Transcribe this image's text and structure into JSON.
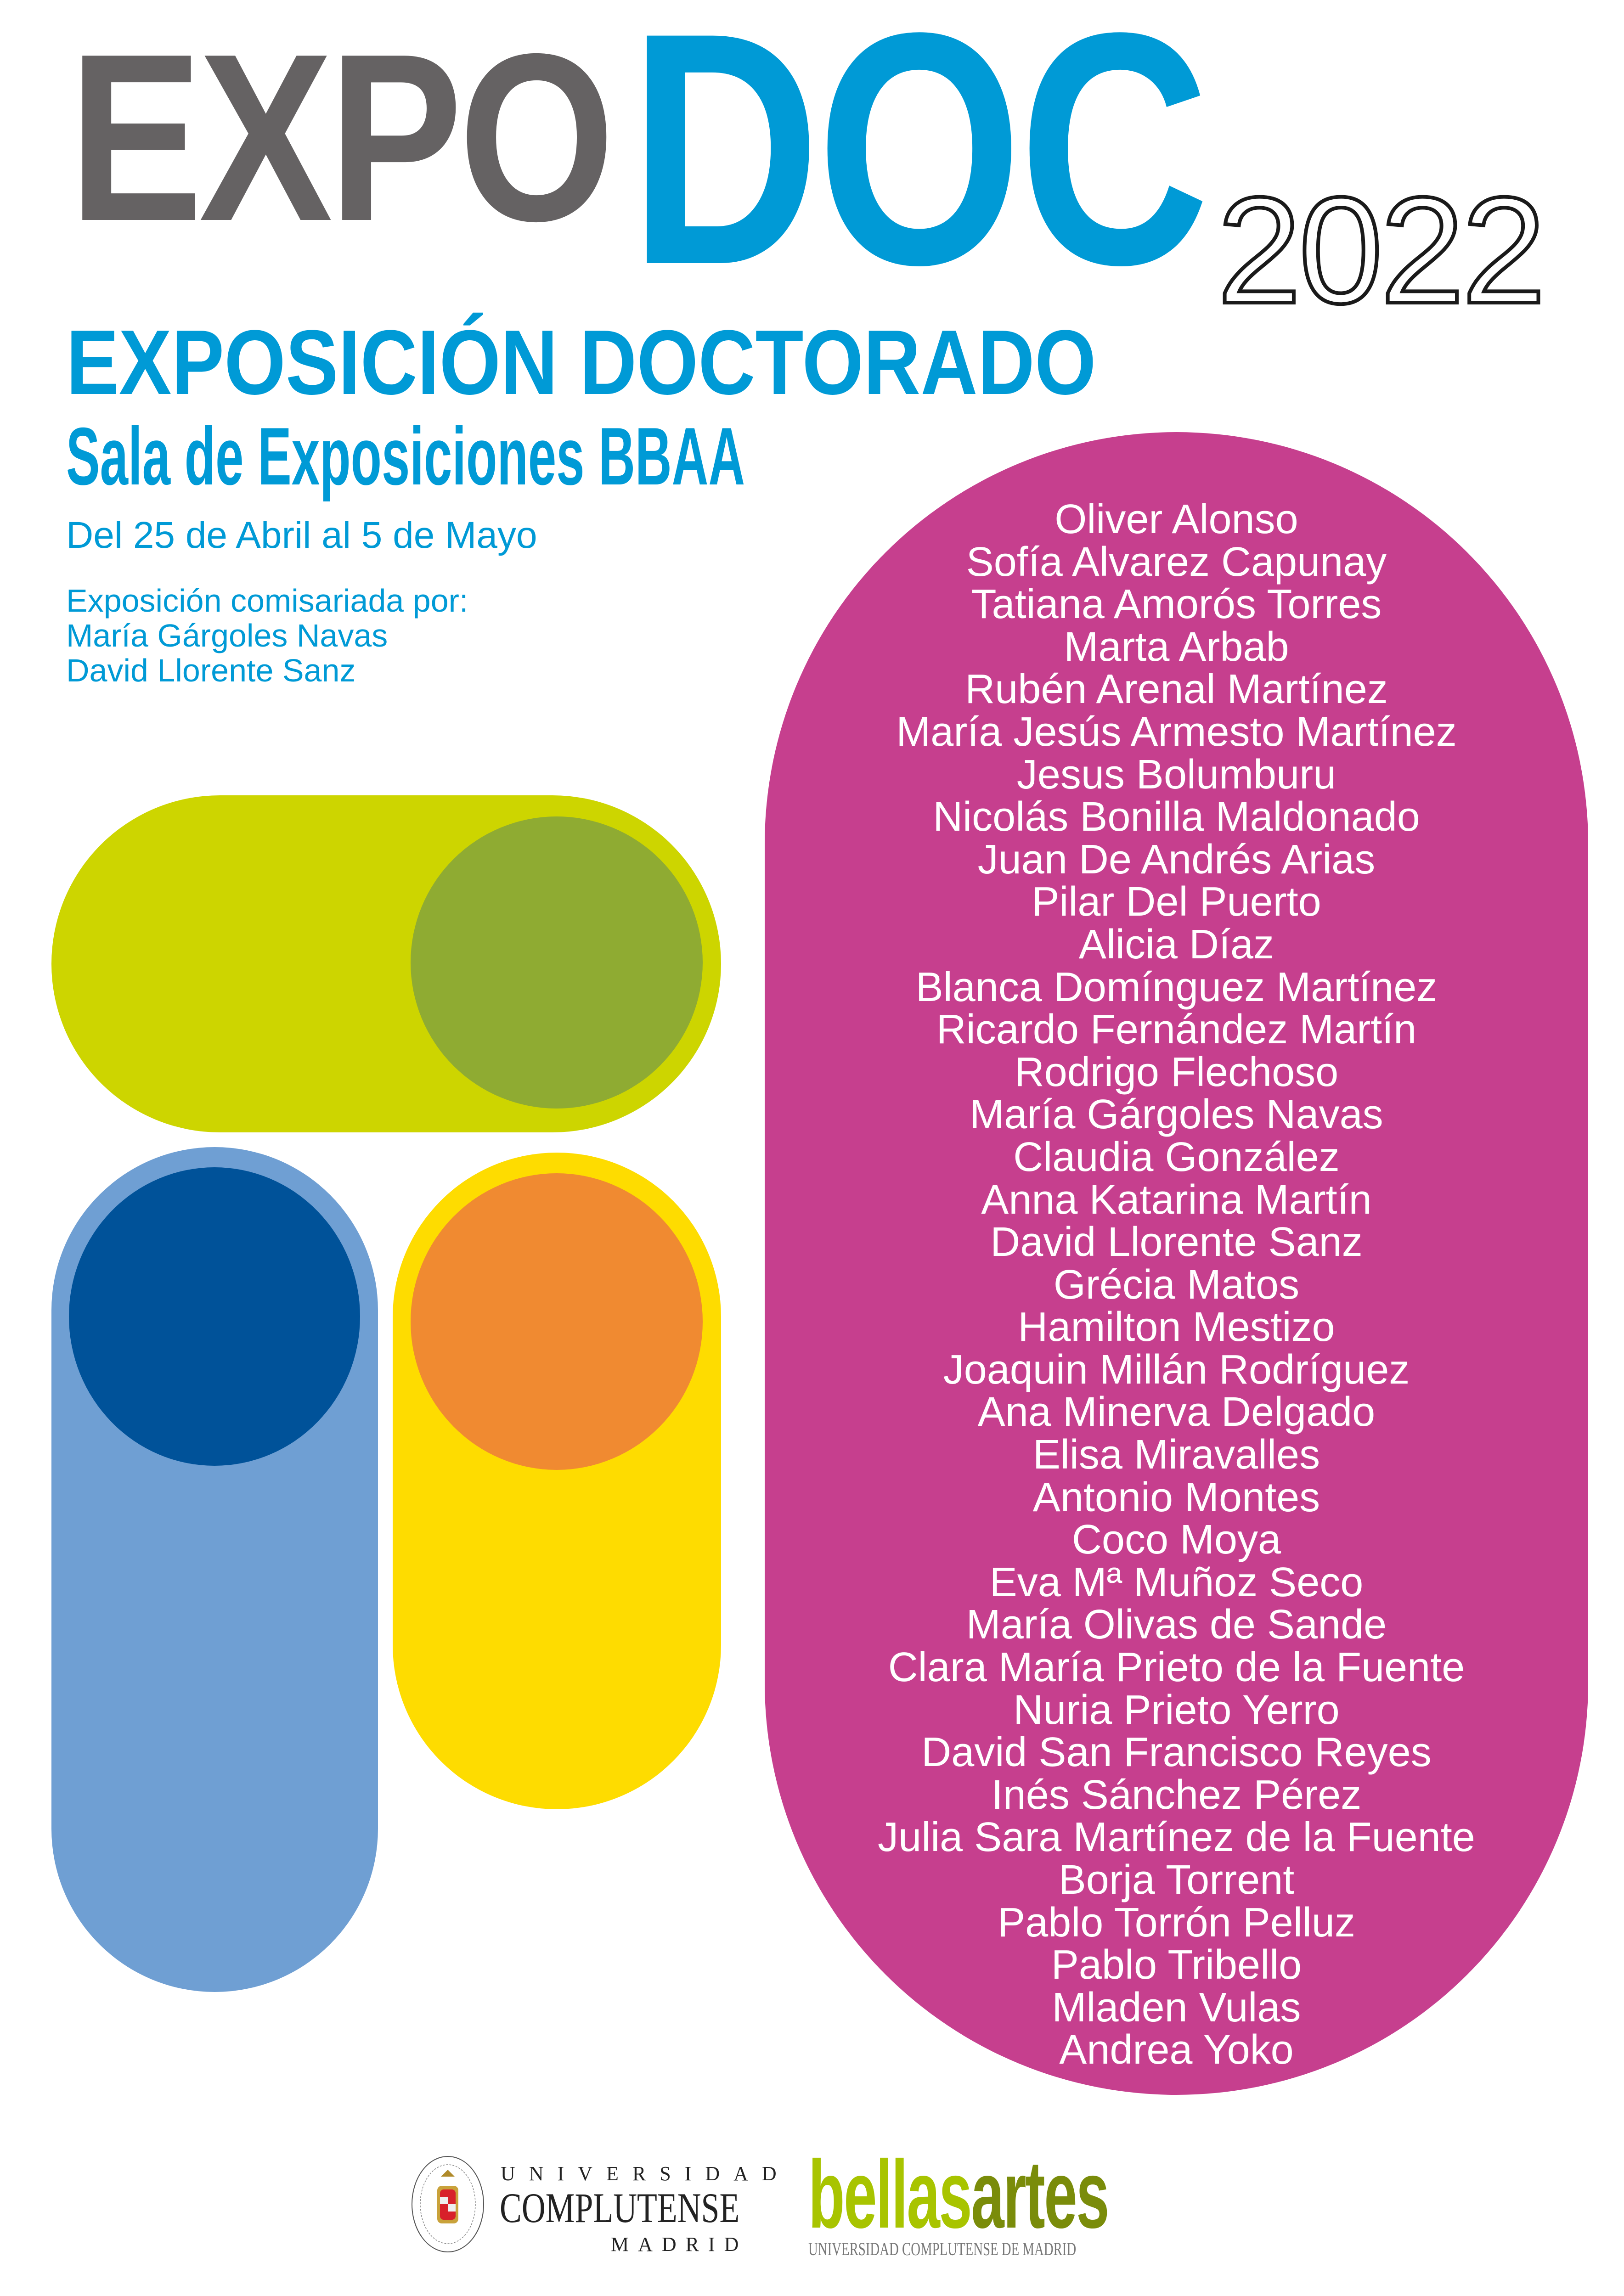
{
  "header": {
    "title_part1": "EXPO",
    "title_part2": "DOC",
    "year": "2022",
    "subtitle": "EXPOSICIÓN DOCTORADO",
    "venue": "Sala de Exposiciones BBAA",
    "dates": "Del 25 de Abril al 5 de Mayo",
    "curated_by_label": "Exposición comisariada por:",
    "curators": [
      "María Gárgoles Navas",
      "David Llorente Sanz"
    ]
  },
  "colors": {
    "gray": "#656263",
    "blue": "#009ad6",
    "lime": "#cdd500",
    "olive": "#8fab32",
    "light_blue": "#6f9fd3",
    "dark_blue": "#005299",
    "yellow": "#fedc00",
    "orange": "#f08a31",
    "magenta": "#c63f8e",
    "bellas_light": "#a8c400",
    "bellas_dark": "#7a8c0a"
  },
  "artists": [
    "Oliver Alonso",
    "Sofía Alvarez Capunay",
    "Tatiana Amorós Torres",
    "Marta Arbab",
    "Rubén Arenal Martínez",
    "María Jesús Armesto Martínez",
    "Jesus Bolumburu",
    "Nicolás Bonilla Maldonado",
    "Juan De Andrés Arias",
    "Pilar Del Puerto",
    "Alicia Díaz",
    "Blanca Domínguez Martínez",
    "Ricardo Fernández Martín",
    "Rodrigo Flechoso",
    "María Gárgoles Navas",
    "Claudia González",
    "Anna Katarina Martín",
    "David Llorente Sanz",
    "Grécia Matos",
    "Hamilton Mestizo",
    "Joaquin Millán Rodríguez",
    "Ana Minerva Delgado",
    "Elisa Miravalles",
    "Antonio Montes",
    "Coco Moya",
    "Eva Mª Muñoz Seco",
    "María Olivas de Sande",
    "Clara María Prieto de la Fuente",
    "Nuria Prieto Yerro",
    "David San Francisco Reyes",
    "Inés Sánchez Pérez",
    "Julia Sara Martínez de la Fuente",
    "Borja Torrent",
    "Pablo Torrón Pelluz",
    "Pablo Tribello",
    "Mladen Vulas",
    "Andrea Yoko"
  ],
  "footer": {
    "ucm_top": "UNIVERSIDAD",
    "ucm_main": "COMPLUTENSE",
    "ucm_bottom": "MADRID",
    "bellas_part1": "bellas",
    "bellas_part2": "artes",
    "bellas_sub": "UNIVERSIDAD COMPLUTENSE DE MADRID"
  }
}
